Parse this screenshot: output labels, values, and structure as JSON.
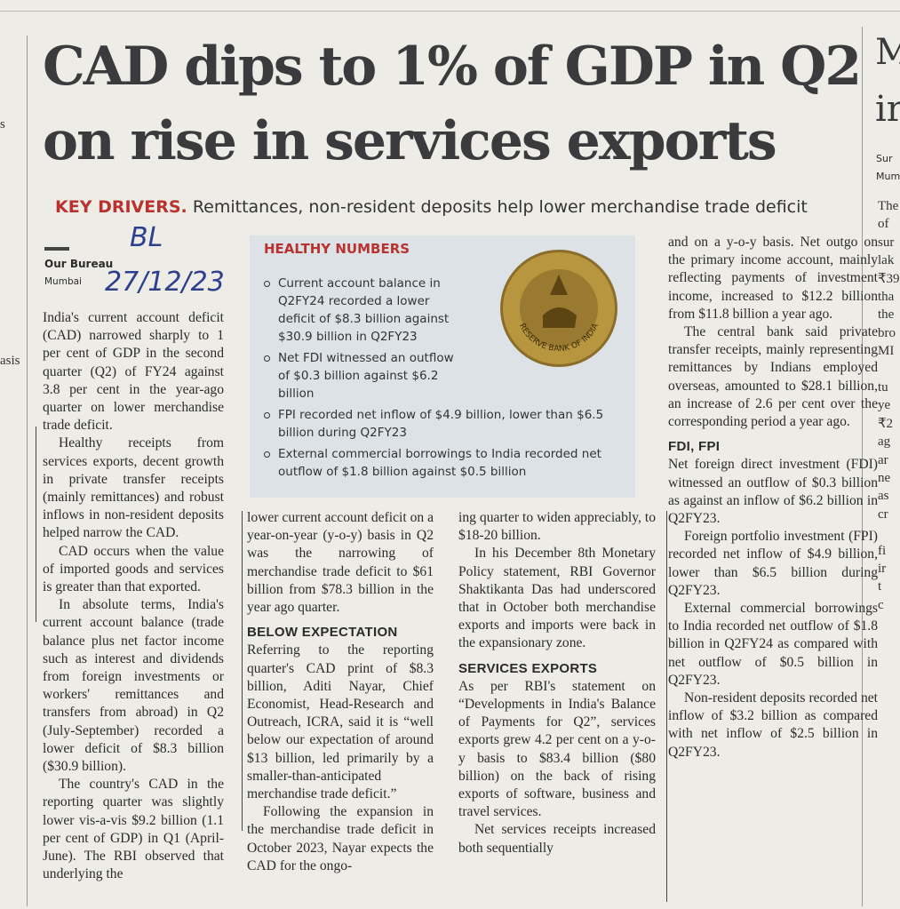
{
  "header": {
    "headline": [
      "CAD dips to 1% of GDP in Q2",
      "on rise in services exports"
    ],
    "kicker": "KEY DRIVERS.",
    "subhead": "Remittances, non-resident deposits help lower merchandise trade deficit"
  },
  "byline": {
    "author": "Our Bureau",
    "location": "Mumbai"
  },
  "handwritten": {
    "note": "BL",
    "date": "27/12/23"
  },
  "box": {
    "title": "HEALTHY NUMBERS",
    "bullets": [
      "Current account balance in Q2FY24 recorded a lower deficit of $8.3 billion against $30.9 billion in Q2FY23",
      "Net FDI witnessed an outflow of $0.3 billion against $6.2 billion",
      "FPI recorded net inflow of $4.9 billion, lower than $6.5 billion during Q2FY23",
      "External commercial borrowings to India recorded net outflow of $1.8 billion against $0.5 billion"
    ],
    "logo_text": "RESERVE BANK OF INDIA"
  },
  "columns": [
    [
      {
        "text": "India's current account deficit (CAD) narrowed sharply to 1 per cent of GDP in the second quarter (Q2) of FY24 against 3.8 per cent in the year-ago quarter on lower merchandise trade deficit."
      },
      {
        "text": "Healthy receipts from services exports, decent growth in private transfer receipts (mainly remittances) and robust inflows in non-resident deposits helped narrow the CAD."
      },
      {
        "text": "CAD occurs when the value of imported goods and services is greater than that exported."
      },
      {
        "text": "In absolute terms, India's current account balance (trade balance plus net factor income such as interest and dividends from foreign investments or workers' remittances and transfers from abroad) in Q2 (July-September) recorded a lower deficit of $8.3 billion ($30.9 billion)."
      },
      {
        "text": "The country's CAD in the reporting quarter was slightly lower vis-a-vis $9.2 billion (1.1 per cent of GDP) in Q1 (April-June). The RBI observed that underlying the"
      }
    ],
    [
      {
        "text": "lower current account deficit on a year-on-year (y-o-y) basis in Q2 was the narrowing of merchandise trade deficit to $61 billion from $78.3 billion in the year ago quarter."
      },
      {
        "heading": "BELOW EXPECTATION"
      },
      {
        "text": "Referring to the reporting quarter's CAD print of $8.3 billion, Aditi Nayar, Chief Economist, Head-Research and Outreach, ICRA, said it is “well below our expectation of around $13 billion, led primarily by a smaller-than-anticipated merchandise trade deficit.”"
      },
      {
        "text": "Following the expansion in the merchandise trade deficit in October 2023, Nayar expects the CAD for the ongo-"
      }
    ],
    [
      {
        "text": "ing quarter to widen appreciably, to $18-20 billion."
      },
      {
        "text": "In his December 8th Monetary Policy statement, RBI Governor Shaktikanta Das had underscored that in October both merchandise exports and imports were back in the expansionary zone."
      },
      {
        "heading": "SERVICES EXPORTS"
      },
      {
        "text": "As per RBI's statement on “Developments in India's Balance of Payments for Q2”, services exports grew 4.2 per cent on a y-o-y basis to $83.4 billion ($80 billion) on the back of rising exports of software, business and travel services."
      },
      {
        "text": "Net services receipts increased both sequentially"
      }
    ],
    [
      {
        "text": "and on a y-o-y basis. Net outgo on the primary income account, mainly reflecting payments of investment income, increased to $12.2 billion from $11.8 billion a year ago."
      },
      {
        "text": "The central bank said private transfer receipts, mainly representing remittances by Indians employed overseas, amounted to $28.1 billion, an increase of 2.6 per cent over the corresponding period a year ago."
      },
      {
        "heading": "FDI, FPI"
      },
      {
        "text": "Net foreign direct investment (FDI) witnessed an outflow of $0.3 billion as against an inflow of $6.2 billion in Q2FY23."
      },
      {
        "text": "Foreign portfolio investment (FPI) recorded net inflow of $4.9 billion, lower than $6.5 billion during Q2FY23."
      },
      {
        "text": "External commercial borrowings to India recorded net outflow of $1.8 billion in Q2FY24 as compared with net outflow of $0.5 billion in Q2FY23."
      },
      {
        "text": "Non-resident deposits recorded net inflow of $3.2 billion as compared with net inflow of $2.5 billion in Q2FY23."
      }
    ]
  ],
  "left_edge": [
    "s",
    "asis"
  ],
  "right_edge": {
    "headline": [
      "M",
      "ir"
    ],
    "byline": [
      "Sur",
      "Mum"
    ],
    "lines": [
      "The",
      "of",
      "sur",
      "lak",
      "₹39",
      "tha",
      "the",
      "bro",
      "MI",
      "",
      "tu",
      "ye",
      "₹2",
      "ag",
      "ar",
      "ne",
      "as",
      "cr",
      "",
      "fi",
      "ir",
      "t",
      "c"
    ]
  }
}
